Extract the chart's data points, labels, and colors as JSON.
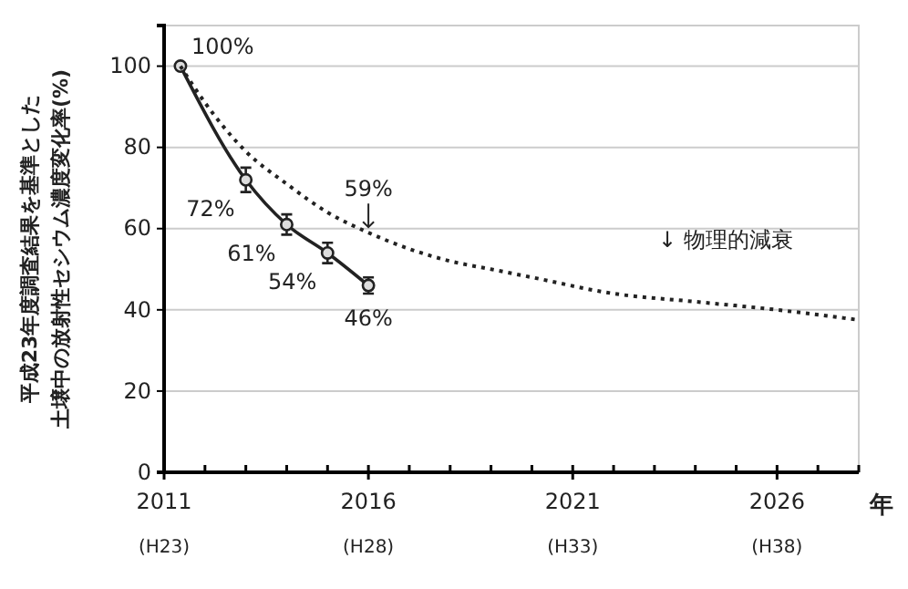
{
  "chart_data": {
    "type": "line",
    "ylabel": "平成23年度調査結果を基準とした土壌中の放射性セシウム濃度変化率(%)",
    "xlabel": "年",
    "xlim": [
      2011,
      2028
    ],
    "ylim": [
      0,
      110
    ],
    "xticks": [
      2011,
      {
        "value": 2012,
        "label": null
      },
      {
        "value": 2013,
        "label": null
      },
      {
        "value": 2014,
        "label": null
      },
      {
        "value": 2015,
        "label": null
      },
      2016,
      {
        "value": 2017,
        "label": null
      },
      {
        "value": 2018,
        "label": null
      },
      {
        "value": 2019,
        "label": null
      },
      {
        "value": 2020,
        "label": null
      },
      2021,
      {
        "value": 2022,
        "label": null
      },
      {
        "value": 2023,
        "label": null
      },
      {
        "value": 2024,
        "label": null
      },
      {
        "value": 2025,
        "label": null
      },
      2026,
      {
        "value": 2027,
        "label": null
      },
      {
        "value": 2028,
        "label": null
      }
    ],
    "yticks": [
      0,
      20,
      40,
      60,
      80,
      100
    ],
    "grid": "y",
    "series": [
      {
        "color": "#222222",
        "marker": "circle",
        "line_style": "solid",
        "x": [
          2011.4,
          2013,
          2014,
          2015,
          2016
        ],
        "values": [
          100,
          72,
          61,
          54,
          46
        ],
        "errors": [
          null,
          3,
          2.5,
          2.5,
          2
        ],
        "value_labels": [
          "100%",
          "72%",
          "61%",
          "54%",
          "46%"
        ]
      },
      {
        "name": "↓ 物理的減衰",
        "color": "#222222",
        "marker": "none",
        "line_style": "dotted",
        "x": [
          2011.4,
          2012,
          2013,
          2014,
          2015,
          2016,
          2017,
          2018,
          2019,
          2020,
          2022,
          2024,
          2026,
          2028
        ],
        "values": [
          100,
          91,
          79,
          71,
          64,
          59,
          55,
          52,
          50,
          48,
          44,
          42,
          40,
          37.5
        ]
      }
    ],
    "annotations": [
      {
        "text": "59%",
        "x": 2016,
        "y": 59
      },
      "(H23)",
      "(H28)",
      "(H33)",
      "(H38)"
    ]
  }
}
